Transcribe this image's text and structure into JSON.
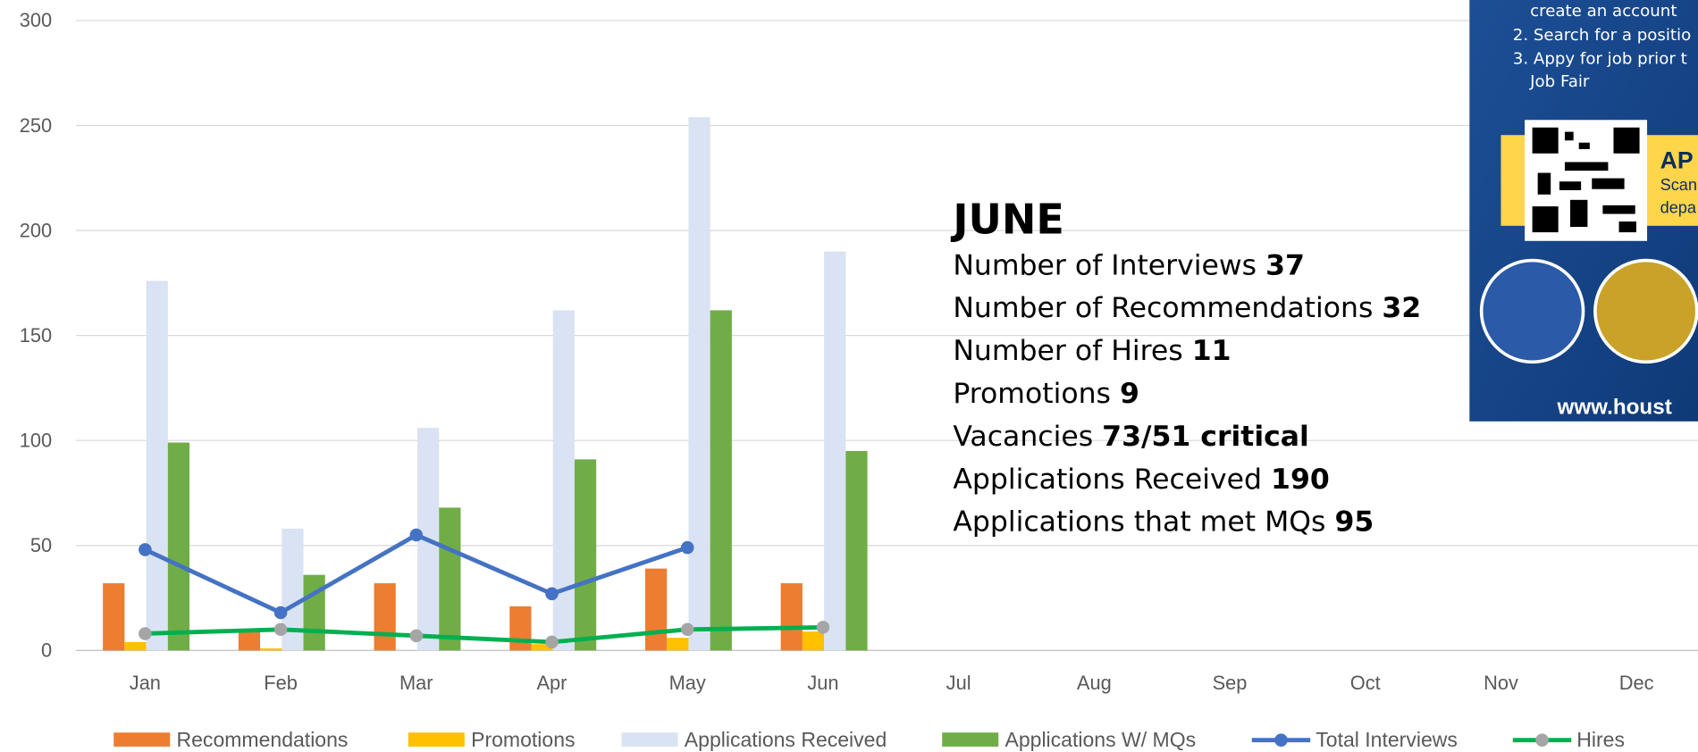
{
  "chart_data": {
    "type": "bar",
    "categories": [
      "Jan",
      "Feb",
      "Mar",
      "Apr",
      "May",
      "Jun",
      "Jul",
      "Aug",
      "Sep",
      "Oct",
      "Nov",
      "Dec"
    ],
    "ylim": [
      0,
      300
    ],
    "yticks": [
      0,
      50,
      100,
      150,
      200,
      250,
      300
    ],
    "grid": true,
    "series": [
      {
        "name": "Recommendations",
        "color": "#ed7d31",
        "type": "bar",
        "values": [
          32,
          9,
          32,
          21,
          39,
          32,
          null,
          null,
          null,
          null,
          null,
          null
        ]
      },
      {
        "name": "Promotions",
        "color": "#ffc000",
        "type": "bar",
        "values": [
          4,
          1,
          0,
          3,
          6,
          9,
          null,
          null,
          null,
          null,
          null,
          null
        ]
      },
      {
        "name": "Applications Received",
        "color": "#dae3f3",
        "type": "bar",
        "values": [
          176,
          58,
          106,
          162,
          254,
          190,
          null,
          null,
          null,
          null,
          null,
          null
        ]
      },
      {
        "name": "Applications W/ MQs",
        "color": "#70ad47",
        "type": "bar",
        "values": [
          99,
          36,
          68,
          91,
          162,
          95,
          null,
          null,
          null,
          null,
          null,
          null
        ]
      },
      {
        "name": "Total Interviews",
        "color": "#4472c4",
        "type": "line",
        "marker": "#4472c4",
        "values": [
          48,
          18,
          55,
          27,
          49,
          null,
          null,
          null,
          null,
          null,
          null,
          null
        ]
      },
      {
        "name": "Hires",
        "color": "#00b050",
        "type": "line",
        "marker": "#a5a5a5",
        "values": [
          8,
          10,
          7,
          4,
          10,
          11,
          null,
          null,
          null,
          null,
          null,
          null
        ]
      }
    ]
  },
  "summary": {
    "heading": "JUNE",
    "rows": [
      {
        "label": "Number of Interviews",
        "value": 37
      },
      {
        "label": "Number of Recommendations",
        "value": 32
      },
      {
        "label": "Number of Hires",
        "value": 11
      },
      {
        "label": "Promotions",
        "value": 9
      },
      {
        "label": "Vacancies",
        "value": "73/51 critical"
      },
      {
        "label": "Applications Received",
        "value": 190
      },
      {
        "label": "Applications that met MQs",
        "value": 95
      }
    ]
  },
  "poster": {
    "steps": [
      "create an account",
      "2. Search for a positio",
      "3. Appy for job prior t",
      "Job Fair"
    ],
    "apply": "AP",
    "scan": [
      "Scan",
      "depa"
    ],
    "url": "www.houst"
  }
}
